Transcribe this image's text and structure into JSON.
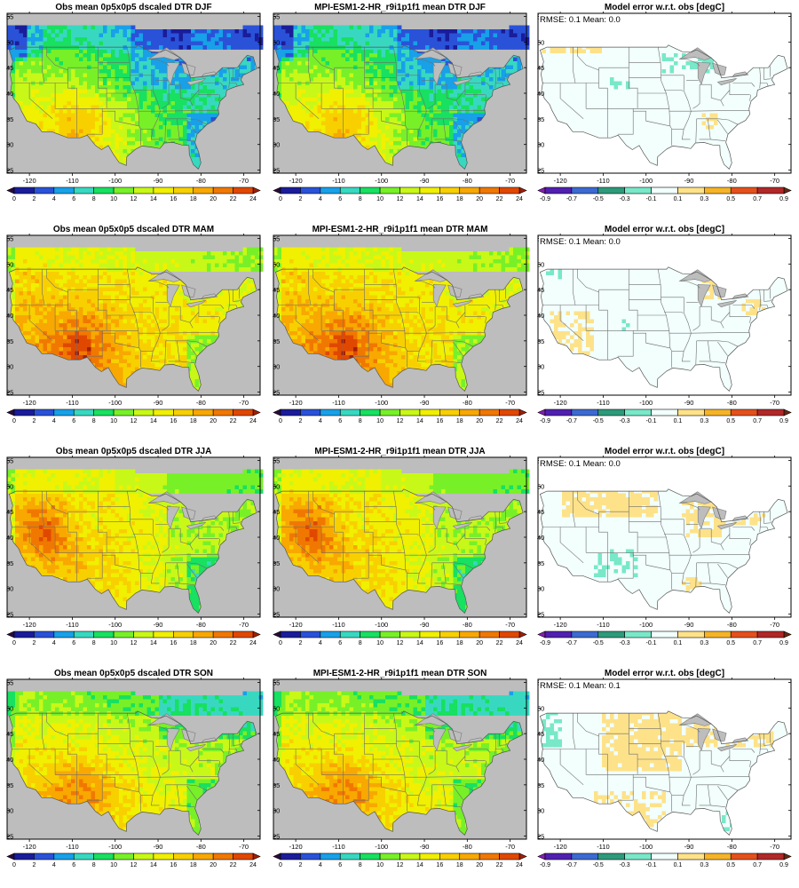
{
  "panels": [
    {
      "title": "Obs mean 0p5x0p5 dscaled DTR DJF",
      "kind": "abs",
      "season": "DJF"
    },
    {
      "title": "MPI-ESM1-2-HR_r9i1p1f1 mean DTR DJF",
      "kind": "abs",
      "season": "DJF"
    },
    {
      "title": "Model error w.r.t. obs [degC]",
      "kind": "err",
      "season": "DJF",
      "stats": "RMSE: 0.1   Mean: 0.0"
    },
    {
      "title": "Obs mean 0p5x0p5 dscaled DTR MAM",
      "kind": "abs",
      "season": "MAM"
    },
    {
      "title": "MPI-ESM1-2-HR_r9i1p1f1 mean DTR MAM",
      "kind": "abs",
      "season": "MAM"
    },
    {
      "title": "Model error w.r.t. obs [degC]",
      "kind": "err",
      "season": "MAM",
      "stats": "RMSE: 0.1   Mean: 0.0"
    },
    {
      "title": "Obs mean 0p5x0p5 dscaled DTR JJA",
      "kind": "abs",
      "season": "JJA"
    },
    {
      "title": "MPI-ESM1-2-HR_r9i1p1f1 mean DTR JJA",
      "kind": "abs",
      "season": "JJA"
    },
    {
      "title": "Model error w.r.t. obs [degC]",
      "kind": "err",
      "season": "JJA",
      "stats": "RMSE: 0.1   Mean: 0.0"
    },
    {
      "title": "Obs mean 0p5x0p5 dscaled DTR SON",
      "kind": "abs",
      "season": "SON"
    },
    {
      "title": "MPI-ESM1-2-HR_r9i1p1f1 mean DTR SON",
      "kind": "abs",
      "season": "SON"
    },
    {
      "title": "Model error w.r.t. obs [degC]",
      "kind": "err",
      "season": "SON",
      "stats": "RMSE: 0.1   Mean: 0.1"
    }
  ],
  "lon_ticks": [
    "-120",
    "-110",
    "-100",
    "-90",
    "-80",
    "-70"
  ],
  "lat_ticks": [
    "55",
    "50",
    "45",
    "40",
    "35",
    "30",
    "25"
  ],
  "abs_colorbar": {
    "labels": [
      "0",
      "2",
      "4",
      "6",
      "8",
      "10",
      "12",
      "14",
      "16",
      "18",
      "20",
      "22",
      "24"
    ],
    "colors": [
      "#2a0a3a",
      "#1a1c9a",
      "#2a52d8",
      "#18a0e8",
      "#38d8c0",
      "#18e060",
      "#78f028",
      "#c8f818",
      "#f0f000",
      "#f8d000",
      "#f8a800",
      "#f07800",
      "#e04800",
      "#a02008"
    ]
  },
  "err_colorbar": {
    "labels": [
      "-0.9",
      "-0.7",
      "-0.5",
      "-0.3",
      "-0.1",
      "0.1",
      "0.3",
      "0.5",
      "0.7",
      "0.9"
    ],
    "colors": [
      "#8a1cb8",
      "#5020b0",
      "#3c6ad0",
      "#2e9a7a",
      "#78e8c8",
      "#f2fffc",
      "#fde28a",
      "#f5b428",
      "#e4501c",
      "#b02828",
      "#6a2812"
    ]
  }
}
